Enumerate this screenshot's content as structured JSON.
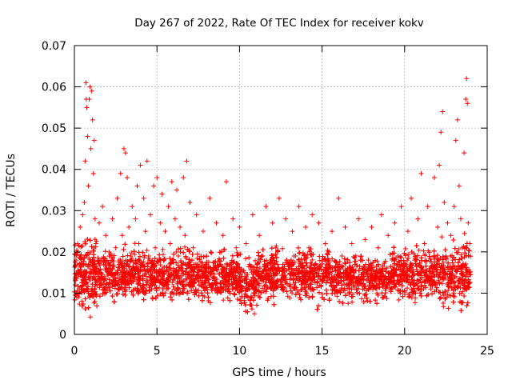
{
  "chart_data": {
    "type": "scatter",
    "title": "Day 267 of 2022, Rate Of TEC Index for receiver kokv",
    "xlabel": "GPS time / hours",
    "ylabel": "ROTI / TECUs",
    "xlim": [
      0,
      25
    ],
    "ylim": [
      0,
      0.07
    ],
    "xticks": [
      0,
      5,
      10,
      15,
      20,
      25
    ],
    "xtick_labels": [
      "0",
      "5",
      "10",
      "15",
      "20",
      "25"
    ],
    "yticks": [
      0,
      0.01,
      0.02,
      0.03,
      0.04,
      0.05,
      0.06,
      0.07
    ],
    "ytick_labels": [
      "0",
      "0.01",
      "0.02",
      "0.03",
      "0.04",
      "0.05",
      "0.06",
      "0.07"
    ],
    "grid": true,
    "marker": "plus",
    "color": "#ff0000",
    "series": [
      {
        "points": [
          [
            0.05,
            0.012
          ],
          [
            0.1,
            0.018
          ],
          [
            0.15,
            0.009
          ],
          [
            0.2,
            0.022
          ],
          [
            0.25,
            0.015
          ],
          [
            0.3,
            0.011
          ],
          [
            0.35,
            0.026
          ],
          [
            0.4,
            0.019
          ],
          [
            0.45,
            0.008
          ],
          [
            0.5,
            0.029
          ],
          [
            0.55,
            0.014
          ],
          [
            0.6,
            0.032
          ],
          [
            0.65,
            0.042
          ],
          [
            0.7,
            0.061
          ],
          [
            0.72,
            0.057
          ],
          [
            0.75,
            0.055
          ],
          [
            0.8,
            0.048
          ],
          [
            0.85,
            0.036
          ],
          [
            0.9,
            0.057
          ],
          [
            0.95,
            0.06
          ],
          [
            1.0,
            0.045
          ],
          [
            1.05,
            0.059
          ],
          [
            1.1,
            0.052
          ],
          [
            1.15,
            0.039
          ],
          [
            1.2,
            0.047
          ],
          [
            1.25,
            0.028
          ],
          [
            1.3,
            0.022
          ],
          [
            1.35,
            0.016
          ],
          [
            1.4,
            0.012
          ],
          [
            1.5,
            0.027
          ],
          [
            1.6,
            0.018
          ],
          [
            1.7,
            0.031
          ],
          [
            1.8,
            0.014
          ],
          [
            1.9,
            0.024
          ],
          [
            2.0,
            0.011
          ],
          [
            2.1,
            0.02
          ],
          [
            2.2,
            0.016
          ],
          [
            2.3,
            0.028
          ],
          [
            2.4,
            0.013
          ],
          [
            2.5,
            0.021
          ],
          [
            2.6,
            0.033
          ],
          [
            2.7,
            0.017
          ],
          [
            2.8,
            0.039
          ],
          [
            2.9,
            0.024
          ],
          [
            3.0,
            0.045
          ],
          [
            3.1,
            0.044
          ],
          [
            3.2,
            0.038
          ],
          [
            3.3,
            0.026
          ],
          [
            3.4,
            0.019
          ],
          [
            3.5,
            0.031
          ],
          [
            3.6,
            0.014
          ],
          [
            3.7,
            0.028
          ],
          [
            3.8,
            0.036
          ],
          [
            3.9,
            0.022
          ],
          [
            4.0,
            0.041
          ],
          [
            4.1,
            0.017
          ],
          [
            4.2,
            0.033
          ],
          [
            4.3,
            0.025
          ],
          [
            4.4,
            0.042
          ],
          [
            4.5,
            0.019
          ],
          [
            4.6,
            0.029
          ],
          [
            4.7,
            0.012
          ],
          [
            4.8,
            0.036
          ],
          [
            4.9,
            0.021
          ],
          [
            5.0,
            0.038
          ],
          [
            5.1,
            0.015
          ],
          [
            5.2,
            0.027
          ],
          [
            5.3,
            0.034
          ],
          [
            5.4,
            0.018
          ],
          [
            5.5,
            0.025
          ],
          [
            5.6,
            0.011
          ],
          [
            5.7,
            0.031
          ],
          [
            5.8,
            0.022
          ],
          [
            5.9,
            0.037
          ],
          [
            6.0,
            0.016
          ],
          [
            6.1,
            0.028
          ],
          [
            6.2,
            0.035
          ],
          [
            6.3,
            0.019
          ],
          [
            6.4,
            0.026
          ],
          [
            6.5,
            0.013
          ],
          [
            6.6,
            0.038
          ],
          [
            6.7,
            0.024
          ],
          [
            6.8,
            0.042
          ],
          [
            6.9,
            0.017
          ],
          [
            7.0,
            0.032
          ],
          [
            7.2,
            0.021
          ],
          [
            7.4,
            0.029
          ],
          [
            7.6,
            0.014
          ],
          [
            7.8,
            0.025
          ],
          [
            8.0,
            0.019
          ],
          [
            8.2,
            0.033
          ],
          [
            8.4,
            0.012
          ],
          [
            8.6,
            0.027
          ],
          [
            8.8,
            0.018
          ],
          [
            9.0,
            0.024
          ],
          [
            9.2,
            0.037
          ],
          [
            9.4,
            0.015
          ],
          [
            9.6,
            0.028
          ],
          [
            9.8,
            0.021
          ],
          [
            10.0,
            0.026
          ],
          [
            10.2,
            0.013
          ],
          [
            10.4,
            0.022
          ],
          [
            10.6,
            0.017
          ],
          [
            10.8,
            0.029
          ],
          [
            11.0,
            0.011
          ],
          [
            11.2,
            0.024
          ],
          [
            11.4,
            0.019
          ],
          [
            11.6,
            0.031
          ],
          [
            11.8,
            0.014
          ],
          [
            12.0,
            0.027
          ],
          [
            12.2,
            0.021
          ],
          [
            12.4,
            0.033
          ],
          [
            12.6,
            0.016
          ],
          [
            12.8,
            0.028
          ],
          [
            13.0,
            0.012
          ],
          [
            13.2,
            0.025
          ],
          [
            13.4,
            0.019
          ],
          [
            13.6,
            0.031
          ],
          [
            13.8,
            0.014
          ],
          [
            14.0,
            0.026
          ],
          [
            14.2,
            0.021
          ],
          [
            14.4,
            0.029
          ],
          [
            14.6,
            0.017
          ],
          [
            14.8,
            0.027
          ],
          [
            15.0,
            0.013
          ],
          [
            15.2,
            0.022
          ],
          [
            15.4,
            0.018
          ],
          [
            15.6,
            0.025
          ],
          [
            15.8,
            0.011
          ],
          [
            16.0,
            0.033
          ],
          [
            16.2,
            0.019
          ],
          [
            16.4,
            0.026
          ],
          [
            16.6,
            0.014
          ],
          [
            16.8,
            0.022
          ],
          [
            17.0,
            0.017
          ],
          [
            17.2,
            0.028
          ],
          [
            17.4,
            0.012
          ],
          [
            17.6,
            0.023
          ],
          [
            17.8,
            0.018
          ],
          [
            18.0,
            0.026
          ],
          [
            18.2,
            0.014
          ],
          [
            18.4,
            0.021
          ],
          [
            18.6,
            0.029
          ],
          [
            18.8,
            0.016
          ],
          [
            19.0,
            0.024
          ],
          [
            19.2,
            0.011
          ],
          [
            19.4,
            0.027
          ],
          [
            19.6,
            0.019
          ],
          [
            19.8,
            0.031
          ],
          [
            20.0,
            0.015
          ],
          [
            20.2,
            0.025
          ],
          [
            20.4,
            0.033
          ],
          [
            20.6,
            0.018
          ],
          [
            20.8,
            0.028
          ],
          [
            21.0,
            0.039
          ],
          [
            21.2,
            0.022
          ],
          [
            21.4,
            0.031
          ],
          [
            21.6,
            0.016
          ],
          [
            21.8,
            0.038
          ],
          [
            22.0,
            0.026
          ],
          [
            22.1,
            0.041
          ],
          [
            22.2,
            0.049
          ],
          [
            22.3,
            0.054
          ],
          [
            22.4,
            0.032
          ],
          [
            22.5,
            0.019
          ],
          [
            22.6,
            0.027
          ],
          [
            22.7,
            0.014
          ],
          [
            22.8,
            0.024
          ],
          [
            22.9,
            0.018
          ],
          [
            23.0,
            0.031
          ],
          [
            23.1,
            0.047
          ],
          [
            23.2,
            0.052
          ],
          [
            23.3,
            0.036
          ],
          [
            23.4,
            0.028
          ],
          [
            23.5,
            0.021
          ],
          [
            23.6,
            0.044
          ],
          [
            23.7,
            0.057
          ],
          [
            23.75,
            0.062
          ],
          [
            23.8,
            0.056
          ],
          [
            23.85,
            0.027
          ],
          [
            23.9,
            0.015
          ],
          [
            23.95,
            0.022
          ]
        ]
      }
    ]
  }
}
